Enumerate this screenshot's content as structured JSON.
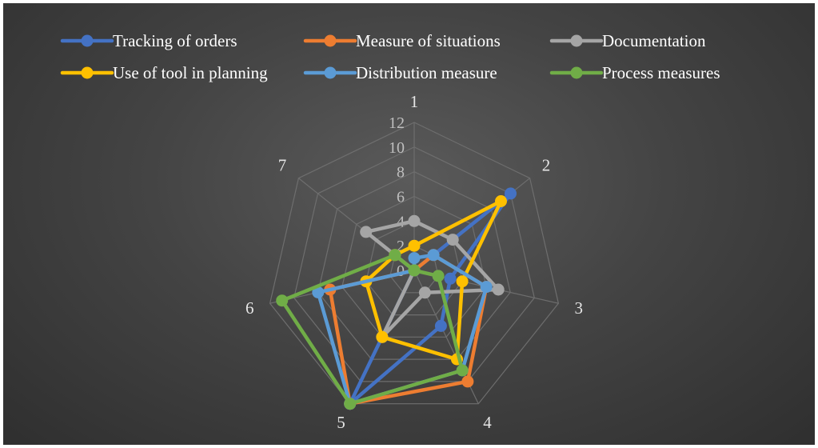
{
  "chart_data": {
    "type": "radar",
    "categories": [
      "1",
      "2",
      "3",
      "4",
      "5",
      "6",
      "7"
    ],
    "radial_ticks": [
      "0",
      "2",
      "4",
      "6",
      "8",
      "10",
      "12"
    ],
    "rlim": [
      0,
      12
    ],
    "grid": true,
    "legend_position": "top",
    "series": [
      {
        "name": "Tracking of orders",
        "color": "#4472c4",
        "values": [
          0,
          10,
          3,
          5,
          12,
          0,
          0
        ]
      },
      {
        "name": "Measure of situations",
        "color": "#ed7d31",
        "values": [
          0,
          2,
          6,
          10,
          12,
          7,
          0
        ]
      },
      {
        "name": "Documentation",
        "color": "#a5a5a5",
        "values": [
          4,
          4,
          7,
          2,
          6,
          0,
          5
        ]
      },
      {
        "name": "Use of tool in planning",
        "color": "#ffc000",
        "values": [
          2,
          9,
          4,
          8,
          6,
          4,
          2
        ]
      },
      {
        "name": "Distribution measure",
        "color": "#5b9bd5",
        "values": [
          1,
          2,
          6,
          9,
          12,
          8,
          0
        ]
      },
      {
        "name": "Process measures",
        "color": "#70ad47",
        "values": [
          0,
          0,
          2,
          9,
          12,
          11,
          2
        ]
      }
    ]
  }
}
